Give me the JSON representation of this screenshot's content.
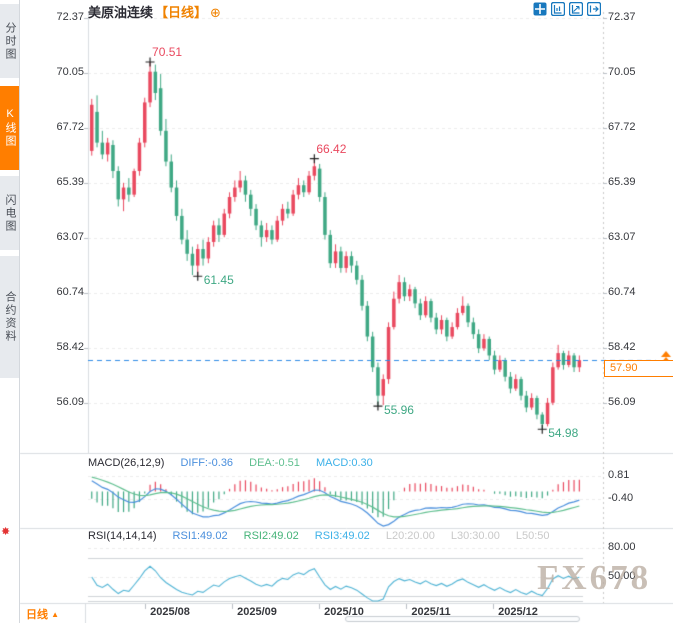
{
  "header": {
    "title": "美原油连续",
    "period_tag": "【日线】",
    "add_icon": "⊕"
  },
  "toolbar_icons": [
    {
      "name": "pan-move-icon"
    },
    {
      "name": "y-axis-scale-icon"
    },
    {
      "name": "x-axis-scale-icon"
    },
    {
      "name": "detach-window-icon"
    }
  ],
  "sidebar": {
    "tabs": [
      {
        "label": "分时图",
        "active": false
      },
      {
        "label": "K线图",
        "active": true
      },
      {
        "label": "闪电图",
        "active": false
      },
      {
        "label": "合约资料",
        "active": false
      }
    ],
    "alert_icon": "✸"
  },
  "current_price": {
    "value": "57.90"
  },
  "macd_panel": {
    "title": "MACD(26,12,9)",
    "diff_label": "DIFF:-0.36",
    "dea_label": "DEA:-0.51",
    "macd_label": "MACD:0.30",
    "axis_labels": [
      "0.81",
      "-0.40"
    ]
  },
  "rsi_panel": {
    "title": "RSI(14,14,14)",
    "rsi1_label": "RSI1:49.02",
    "rsi2_label": "RSI2:49.02",
    "rsi3_label": "RSI3:49.02",
    "l20_label": "L20:20.00",
    "l30_label": "L30:30.00",
    "l50_label": "L50:50",
    "axis_labels": [
      "80.00",
      "50.00"
    ]
  },
  "bottom_bar": {
    "period_label": "日线",
    "arrow": "▲"
  },
  "watermark": "FX678",
  "colors": {
    "up": "#e9495f",
    "down": "#3fa884",
    "accent_orange": "#ff7e00",
    "icon_blue": "#1878be",
    "price_line_blue": "#2e8be6",
    "diff_blue": "#4a8fdd",
    "dea_green": "#5fbf8f",
    "macd_cyan": "#3db1e8",
    "rsi_line": "#4fb3d4"
  },
  "chart_data": {
    "type": "candlestick",
    "symbol": "美原油连续",
    "period": "日线",
    "price_axis_labels": [
      "72.37",
      "70.05",
      "67.72",
      "65.39",
      "63.07",
      "60.74",
      "58.42",
      "56.09"
    ],
    "price_axis_levels": [
      72.37,
      70.05,
      67.72,
      65.39,
      63.07,
      60.74,
      58.42,
      56.09
    ],
    "x_axis_labels": [
      "2025/08",
      "2025/09",
      "2025/10",
      "2025/11",
      "2025/12"
    ],
    "x_axis_label_x": [
      170,
      257,
      344,
      431,
      518
    ],
    "current_price": 57.9,
    "annotations": [
      {
        "label": "70.51",
        "price": 70.51,
        "candle": 11,
        "kind": "high"
      },
      {
        "label": "66.42",
        "price": 66.42,
        "candle": 42,
        "kind": "high"
      },
      {
        "label": "61.45",
        "price": 61.45,
        "candle": 20,
        "kind": "low"
      },
      {
        "label": "55.96",
        "price": 55.96,
        "candle": 54,
        "kind": "low"
      },
      {
        "label": "54.98",
        "price": 54.98,
        "candle": 85,
        "kind": "low"
      }
    ],
    "macd": {
      "params": [
        26,
        12,
        9
      ],
      "diff": -0.36,
      "dea": -0.51,
      "macd": 0.3,
      "axis_values": [
        0.81,
        -0.4
      ]
    },
    "rsi": {
      "params": [
        14,
        14,
        14
      ],
      "rsi1": 49.02,
      "rsi2": 49.02,
      "rsi3": 49.02,
      "levels": {
        "L20": 20.0,
        "L30": 30.0,
        "L50": 50
      },
      "axis_values": [
        80.0,
        50.0
      ]
    },
    "candles": [
      [
        66.75,
        68.95,
        66.55,
        68.7
      ],
      [
        68.4,
        69.1,
        66.9,
        67.1
      ],
      [
        67.1,
        67.6,
        66.4,
        66.6
      ],
      [
        66.6,
        67.3,
        66.3,
        67.1
      ],
      [
        67.0,
        67.2,
        65.6,
        65.9
      ],
      [
        65.9,
        66.1,
        64.4,
        64.7
      ],
      [
        64.7,
        65.4,
        64.2,
        65.2
      ],
      [
        65.2,
        65.6,
        64.6,
        64.9
      ],
      [
        64.9,
        66.0,
        64.8,
        65.9
      ],
      [
        65.9,
        67.3,
        65.7,
        67.1
      ],
      [
        67.1,
        69.0,
        66.9,
        68.8
      ],
      [
        68.8,
        70.51,
        68.6,
        70.1
      ],
      [
        70.1,
        70.4,
        68.9,
        69.2
      ],
      [
        69.4,
        70.0,
        67.4,
        67.6
      ],
      [
        67.6,
        68.1,
        66.1,
        66.3
      ],
      [
        66.3,
        66.6,
        65.0,
        65.2
      ],
      [
        65.2,
        65.5,
        63.8,
        64.0
      ],
      [
        64.0,
        64.3,
        62.8,
        63.0
      ],
      [
        63.0,
        63.4,
        62.1,
        62.4
      ],
      [
        62.4,
        62.7,
        61.5,
        61.9
      ],
      [
        61.9,
        62.8,
        61.45,
        62.6
      ],
      [
        62.6,
        63.0,
        61.9,
        62.2
      ],
      [
        62.2,
        63.1,
        62.0,
        62.9
      ],
      [
        62.9,
        63.8,
        62.7,
        63.6
      ],
      [
        63.6,
        63.9,
        62.9,
        63.2
      ],
      [
        63.2,
        64.3,
        63.1,
        64.1
      ],
      [
        64.1,
        65.0,
        63.9,
        64.8
      ],
      [
        64.8,
        65.5,
        64.6,
        65.2
      ],
      [
        65.2,
        65.9,
        65.0,
        65.5
      ],
      [
        65.5,
        65.7,
        64.6,
        64.9
      ],
      [
        64.9,
        65.1,
        64.0,
        64.3
      ],
      [
        64.3,
        64.5,
        63.4,
        63.6
      ],
      [
        63.6,
        63.8,
        62.7,
        63.1
      ],
      [
        63.1,
        63.7,
        62.9,
        63.4
      ],
      [
        63.4,
        63.6,
        62.8,
        63.0
      ],
      [
        63.0,
        64.0,
        62.9,
        63.8
      ],
      [
        63.8,
        64.5,
        63.6,
        64.3
      ],
      [
        64.3,
        64.6,
        63.9,
        64.1
      ],
      [
        64.1,
        65.1,
        64.0,
        64.9
      ],
      [
        64.9,
        65.6,
        64.7,
        65.3
      ],
      [
        65.3,
        65.5,
        64.8,
        65.0
      ],
      [
        65.0,
        65.9,
        64.9,
        65.7
      ],
      [
        65.7,
        66.42,
        65.5,
        66.1
      ],
      [
        66.0,
        66.2,
        64.6,
        64.8
      ],
      [
        64.8,
        65.0,
        63.0,
        63.2
      ],
      [
        63.2,
        63.4,
        61.8,
        62.0
      ],
      [
        62.0,
        62.8,
        61.8,
        62.5
      ],
      [
        62.5,
        62.7,
        61.6,
        61.8
      ],
      [
        61.8,
        62.5,
        61.6,
        62.3
      ],
      [
        62.3,
        62.5,
        61.6,
        61.9
      ],
      [
        61.9,
        62.1,
        61.1,
        61.3
      ],
      [
        61.3,
        61.5,
        60.0,
        60.2
      ],
      [
        60.2,
        60.4,
        58.7,
        58.9
      ],
      [
        58.9,
        59.1,
        57.4,
        57.6
      ],
      [
        57.6,
        57.8,
        55.96,
        56.4
      ],
      [
        56.4,
        57.3,
        56.0,
        57.1
      ],
      [
        57.1,
        59.5,
        56.9,
        59.3
      ],
      [
        59.3,
        60.8,
        59.2,
        60.5
      ],
      [
        60.5,
        61.5,
        60.3,
        61.2
      ],
      [
        61.2,
        61.4,
        60.4,
        60.6
      ],
      [
        60.6,
        61.1,
        60.4,
        60.9
      ],
      [
        60.9,
        61.0,
        60.1,
        60.3
      ],
      [
        60.3,
        60.5,
        59.6,
        59.8
      ],
      [
        59.8,
        60.6,
        59.7,
        60.4
      ],
      [
        60.4,
        60.5,
        59.5,
        59.7
      ],
      [
        59.7,
        59.9,
        59.0,
        59.2
      ],
      [
        59.2,
        59.8,
        59.0,
        59.6
      ],
      [
        59.6,
        59.7,
        58.7,
        58.9
      ],
      [
        58.9,
        59.5,
        58.8,
        59.3
      ],
      [
        59.3,
        60.1,
        59.2,
        59.9
      ],
      [
        59.9,
        60.6,
        59.8,
        60.2
      ],
      [
        60.2,
        60.3,
        59.3,
        59.5
      ],
      [
        59.5,
        59.7,
        58.8,
        59.0
      ],
      [
        59.0,
        59.2,
        58.2,
        58.4
      ],
      [
        58.4,
        59.0,
        58.3,
        58.8
      ],
      [
        58.8,
        58.9,
        57.9,
        58.1
      ],
      [
        58.1,
        58.3,
        57.3,
        57.5
      ],
      [
        57.5,
        58.1,
        57.4,
        57.9
      ],
      [
        57.9,
        58.0,
        57.0,
        57.2
      ],
      [
        57.2,
        57.4,
        56.5,
        56.7
      ],
      [
        56.7,
        57.3,
        56.6,
        57.1
      ],
      [
        57.1,
        57.2,
        56.2,
        56.4
      ],
      [
        56.4,
        56.6,
        55.7,
        55.9
      ],
      [
        55.9,
        56.5,
        55.8,
        56.3
      ],
      [
        56.3,
        56.4,
        55.4,
        55.6
      ],
      [
        55.6,
        55.7,
        54.98,
        55.2
      ],
      [
        55.2,
        56.3,
        55.1,
        56.1
      ],
      [
        56.1,
        57.8,
        56.0,
        57.6
      ],
      [
        57.6,
        58.55,
        57.5,
        58.2
      ],
      [
        58.2,
        58.3,
        57.5,
        57.7
      ],
      [
        57.7,
        58.3,
        57.6,
        58.1
      ],
      [
        58.1,
        58.2,
        57.4,
        57.6
      ],
      [
        57.6,
        58.1,
        57.4,
        57.9
      ]
    ]
  }
}
